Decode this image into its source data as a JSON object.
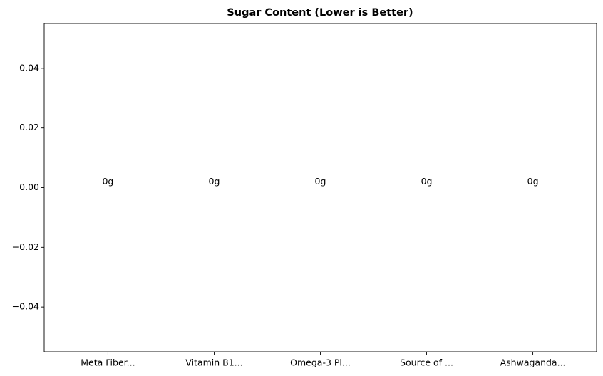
{
  "chart_data": {
    "type": "bar",
    "title": "Sugar Content (Lower is Better)",
    "categories": [
      "Meta Fiber...",
      "Vitamin B1...",
      "Omega-3 Pl...",
      "Source of ...",
      "Ashwaganda..."
    ],
    "values": [
      0,
      0,
      0,
      0,
      0
    ],
    "value_labels": [
      "0g",
      "0g",
      "0g",
      "0g",
      "0g"
    ],
    "ylim": [
      -0.055,
      0.055
    ],
    "yticks": [
      {
        "value": -0.04,
        "label": "−0.04"
      },
      {
        "value": -0.02,
        "label": "−0.02"
      },
      {
        "value": 0,
        "label": "0.00"
      },
      0.02,
      0.04
    ],
    "grid": false
  }
}
